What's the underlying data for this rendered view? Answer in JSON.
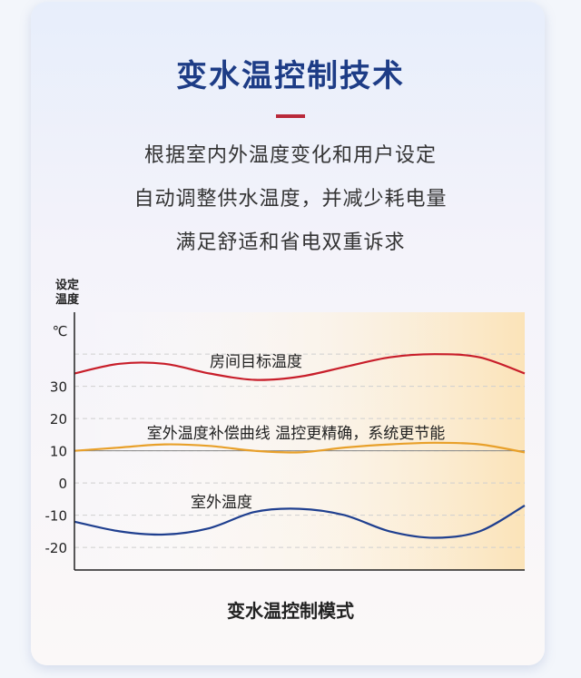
{
  "header": {
    "title": "变水温控制技术",
    "lines": [
      "根据室内外温度变化和用户设定",
      "自动调整供水温度，并减少耗电量",
      "满足舒适和省电双重诉求"
    ]
  },
  "chart_data": {
    "type": "line",
    "ylabel_line1": "设定",
    "ylabel_line2": "温度",
    "unit": "℃",
    "y_ticks": [
      30,
      20,
      10,
      0,
      -10,
      -20
    ],
    "ylim": [
      -27,
      53
    ],
    "grid": true,
    "x": [
      0,
      1,
      2,
      3,
      4,
      5,
      6,
      7,
      8,
      9,
      10
    ],
    "series": [
      {
        "name": "房间目标温度",
        "color": "#c81e2a",
        "values": [
          34,
          37,
          37,
          34,
          32,
          33,
          36,
          39,
          40,
          39,
          34
        ]
      },
      {
        "name": "室外温度补偿曲线 温控更精确，系统更节能",
        "color": "#e8a02a",
        "values": [
          10,
          11,
          12,
          11.5,
          10,
          9.5,
          11,
          12,
          12.5,
          12,
          9.5
        ]
      },
      {
        "name": "室外温度",
        "color": "#1f3f8f",
        "values": [
          -12,
          -15,
          -16,
          -14,
          -9,
          -8,
          -10,
          -15,
          -17,
          -15,
          -7
        ]
      }
    ],
    "reference_line": {
      "value": 10,
      "color": "#888888"
    },
    "colors": {
      "axis": "#222222",
      "grid": "#cfcfcf",
      "area_gradient_end": "#fbe3b8"
    }
  },
  "caption": "变水温控制模式"
}
